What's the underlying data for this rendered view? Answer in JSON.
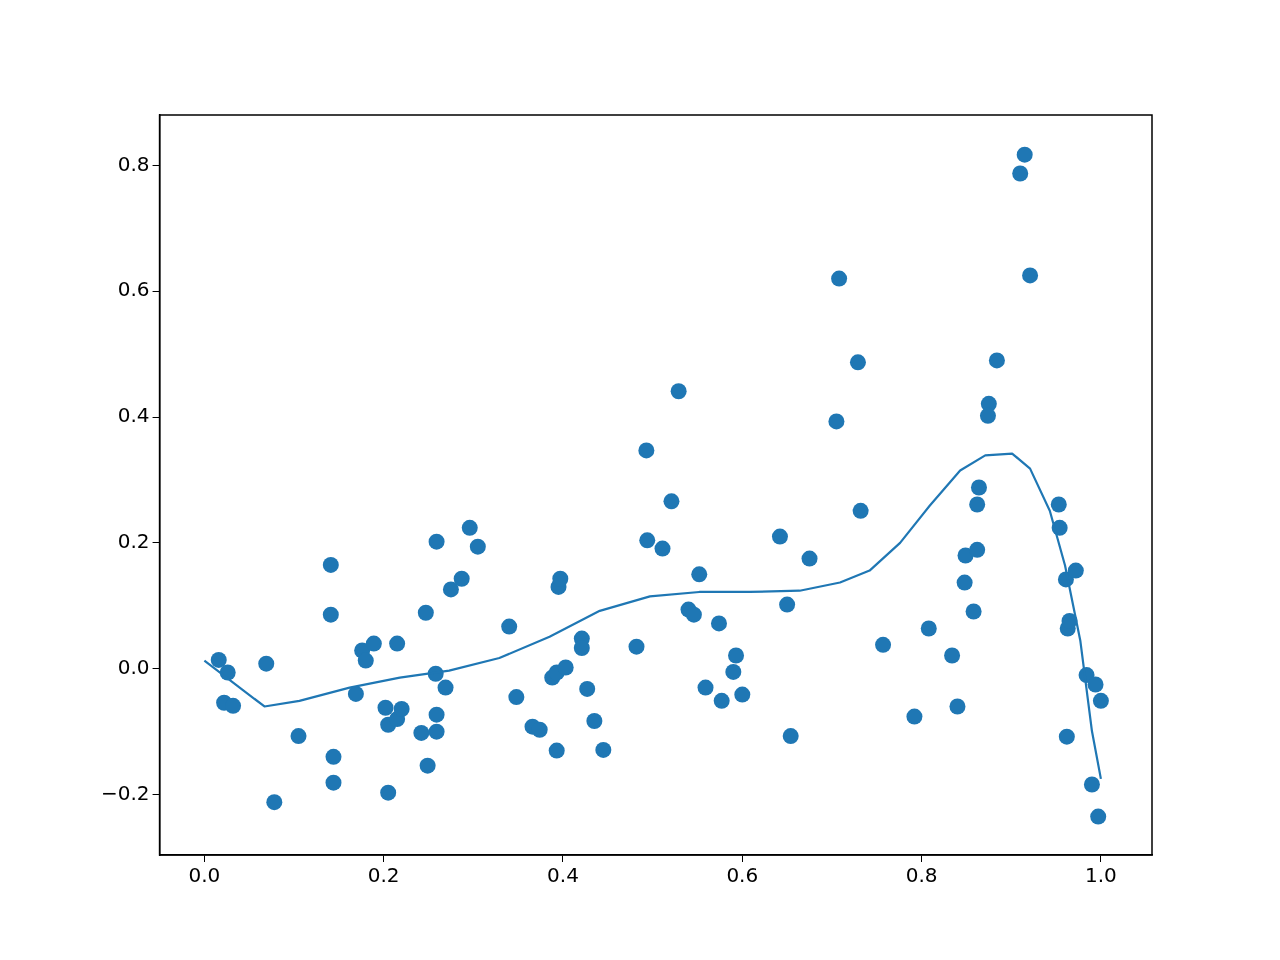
{
  "chart_data": {
    "type": "scatter",
    "xlim": [
      -0.05,
      1.057
    ],
    "ylim": [
      -0.296,
      0.88
    ],
    "xticks": [
      {
        "value": 0,
        "label": "0.0"
      },
      {
        "value": 0.2,
        "label": "0.2"
      },
      {
        "value": 0.4,
        "label": "0.4"
      },
      {
        "value": 0.6,
        "label": "0.6"
      },
      {
        "value": 0.8,
        "label": "0.8"
      },
      {
        "value": 1,
        "label": "1.0"
      }
    ],
    "yticks": [
      {
        "value": -0.2,
        "label": "−0.2"
      },
      {
        "value": 0,
        "label": "0.0"
      },
      {
        "value": 0.2,
        "label": "0.2"
      },
      {
        "value": 0.4,
        "label": "0.4"
      },
      {
        "value": 0.6,
        "label": "0.6"
      },
      {
        "value": 0.8,
        "label": "0.8"
      }
    ],
    "grid": false,
    "series": [
      {
        "color": "#1f77b4",
        "marker": "circle",
        "x": [
          0.016,
          0.026,
          0.022,
          0.032,
          0.069,
          0.078,
          0.105,
          0.141,
          0.141,
          0.144,
          0.144,
          0.169,
          0.176,
          0.18,
          0.189,
          0.202,
          0.205,
          0.205,
          0.215,
          0.215,
          0.22,
          0.242,
          0.247,
          0.249,
          0.258,
          0.259,
          0.259,
          0.259,
          0.269,
          0.275,
          0.287,
          0.296,
          0.305,
          0.34,
          0.348,
          0.366,
          0.374,
          0.388,
          0.393,
          0.393,
          0.395,
          0.397,
          0.403,
          0.421,
          0.421,
          0.427,
          0.435,
          0.445,
          0.482,
          0.493,
          0.494,
          0.511,
          0.521,
          0.529,
          0.54,
          0.546,
          0.552,
          0.559,
          0.574,
          0.577,
          0.59,
          0.593,
          0.6,
          0.642,
          0.65,
          0.654,
          0.675,
          0.705,
          0.708,
          0.729,
          0.732,
          0.757,
          0.792,
          0.808,
          0.834,
          0.84,
          0.848,
          0.849,
          0.858,
          0.862,
          0.862,
          0.864,
          0.875,
          0.874,
          0.884,
          0.91,
          0.915,
          0.921,
          0.953,
          0.954,
          0.961,
          0.962,
          0.963,
          0.965,
          0.972,
          0.984,
          0.99,
          0.994,
          0.997,
          1.0
        ],
        "values": [
          0.014,
          -0.006,
          -0.054,
          -0.059,
          0.008,
          -0.212,
          -0.107,
          0.165,
          0.086,
          -0.14,
          -0.181,
          -0.04,
          0.029,
          0.013,
          0.04,
          -0.062,
          -0.089,
          -0.197,
          0.04,
          -0.08,
          -0.064,
          -0.102,
          0.089,
          -0.154,
          -0.008,
          0.202,
          -0.073,
          -0.1,
          -0.03,
          0.126,
          0.143,
          0.224,
          0.194,
          0.067,
          -0.045,
          -0.092,
          -0.097,
          -0.014,
          -0.006,
          -0.13,
          0.13,
          0.143,
          0.002,
          0.048,
          0.033,
          -0.032,
          -0.083,
          -0.129,
          0.035,
          0.347,
          0.204,
          0.191,
          0.266,
          0.441,
          0.094,
          0.086,
          0.15,
          -0.03,
          0.072,
          -0.051,
          -0.005,
          0.021,
          -0.041,
          0.21,
          0.102,
          -0.107,
          0.175,
          0.393,
          0.62,
          0.487,
          0.251,
          0.038,
          -0.076,
          0.064,
          0.021,
          -0.06,
          0.137,
          0.18,
          0.091,
          0.261,
          0.189,
          0.288,
          0.421,
          0.402,
          0.49,
          0.787,
          0.817,
          0.625,
          0.261,
          0.224,
          0.142,
          -0.108,
          0.064,
          0.076,
          0.156,
          -0.01,
          -0.184,
          -0.025,
          -0.235,
          -0.051
        ]
      },
      {
        "type": "line",
        "color": "#1f77b4",
        "marker": "none",
        "line_style": "solid",
        "x": [
          0,
          0.067,
          0.106,
          0.162,
          0.218,
          0.273,
          0.329,
          0.385,
          0.441,
          0.497,
          0.552,
          0.608,
          0.664,
          0.709,
          0.742,
          0.776,
          0.809,
          0.843,
          0.871,
          0.901,
          0.921,
          0.943,
          0.96,
          0.977,
          0.99,
          1.0
        ],
        "values": [
          0.013,
          -0.06,
          -0.051,
          -0.03,
          -0.014,
          -0.003,
          0.017,
          0.051,
          0.092,
          0.115,
          0.122,
          0.122,
          0.124,
          0.137,
          0.156,
          0.2,
          0.259,
          0.315,
          0.339,
          0.342,
          0.318,
          0.251,
          0.164,
          0.045,
          -0.099,
          -0.175
        ]
      }
    ]
  }
}
